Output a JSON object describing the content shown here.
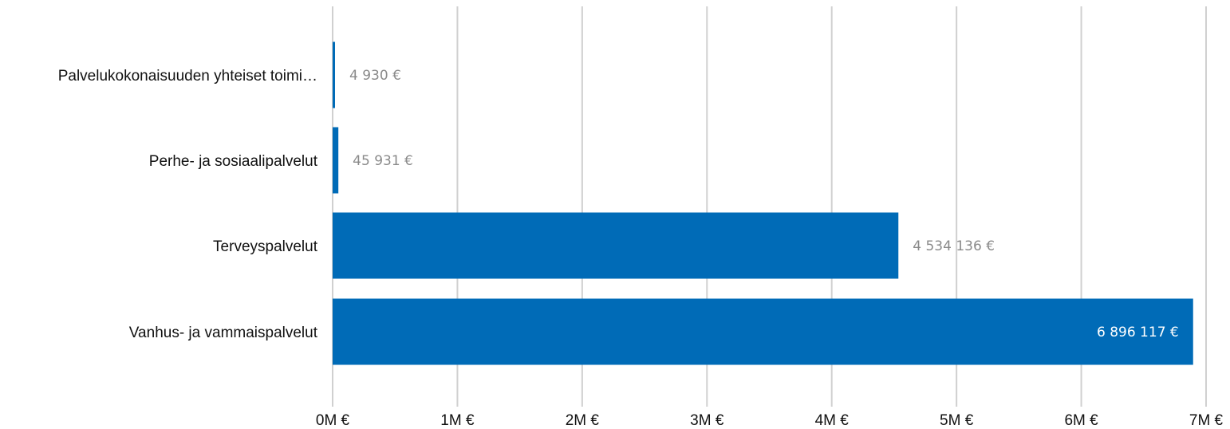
{
  "chart_data": {
    "type": "bar",
    "orientation": "horizontal",
    "categories": [
      "Palvelukokonaisuuden yhteiset toimi…",
      "Perhe- ja sosiaalipalvelut",
      "Terveyspalvelut",
      "Vanhus- ja vammaispalvelut"
    ],
    "values": [
      4930,
      45931,
      4534136,
      6896117
    ],
    "value_labels": [
      "4 930 €",
      "45 931 €",
      "4 534 136 €",
      "6 896 117 €"
    ],
    "xlim": [
      0,
      7000000
    ],
    "x_ticks": [
      0,
      1000000,
      2000000,
      3000000,
      4000000,
      5000000,
      6000000,
      7000000
    ],
    "x_tick_labels": [
      "0M €",
      "1M €",
      "2M €",
      "3M €",
      "4M €",
      "5M €",
      "6M €",
      "7M €"
    ],
    "grid": true,
    "colors": {
      "bar": "#006bb7",
      "label_outside": "#8a8a8a",
      "label_inside": "#ffffff",
      "grid": "#d0d0d0"
    }
  }
}
